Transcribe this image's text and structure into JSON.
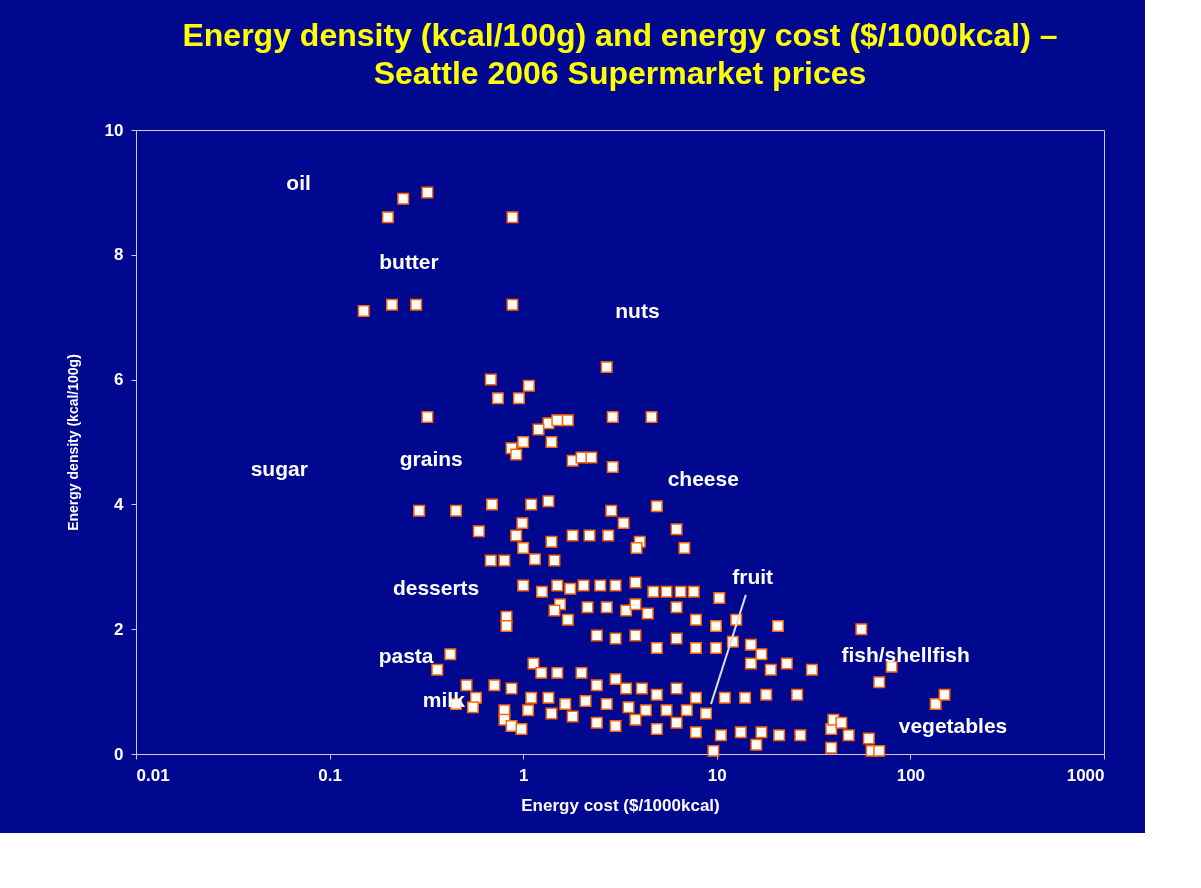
{
  "chart_data": {
    "type": "scatter",
    "title": [
      "Energy density (kcal/100g) and energy cost ($/1000kcal) –",
      "Seattle 2006 Supermarket prices"
    ],
    "xlabel": "Energy cost ($/1000kcal)",
    "ylabel": "Energy density (kcal/100g)",
    "log": "x",
    "marker": "square",
    "grid": false,
    "xlim": [
      0.01,
      1000
    ],
    "xticks": [
      0.01,
      0.1,
      1,
      10,
      100,
      1000
    ],
    "ylim": [
      0,
      10
    ],
    "yticks": [
      0,
      2,
      4,
      6,
      8,
      10
    ],
    "series": [
      {
        "color": "#ff6600",
        "x": [
          0.2,
          0.24,
          0.32,
          0.88,
          0.15,
          0.21,
          0.28,
          0.88,
          2.7,
          0.32,
          0.68,
          0.74,
          1.07,
          0.95,
          2.9,
          4.6,
          1.35,
          1.5,
          1.7,
          1.2,
          1.0,
          0.87,
          0.92,
          1.4,
          2.9,
          1.8,
          2.0,
          2.25,
          0.29,
          0.45,
          0.69,
          1.1,
          1.35,
          4.9,
          0.59,
          0.68,
          0.8,
          1.15,
          1.45,
          1.0,
          0.92,
          0.99,
          1.4,
          1.8,
          2.2,
          2.75,
          3.3,
          2.85,
          4.0,
          3.85,
          6.2,
          6.8,
          1.0,
          1.25,
          1.5,
          1.75,
          2.05,
          2.5,
          3.0,
          3.8,
          4.7,
          5.5,
          6.5,
          7.6,
          10.3,
          0.82,
          0.82,
          1.55,
          1.7,
          1.45,
          2.15,
          2.7,
          3.4,
          3.8,
          4.4,
          6.2,
          7.8,
          9.9,
          12.6,
          20.7,
          55.8,
          2.4,
          3.0,
          3.8,
          4.9,
          6.2,
          7.8,
          9.9,
          12.1,
          15,
          17,
          15,
          19,
          23,
          31,
          80,
          69,
          0.42,
          0.36,
          0.51,
          0.71,
          1.13,
          1.24,
          1.5,
          2.0,
          2.4,
          3.0,
          3.4,
          4.1,
          4.9,
          6.2,
          7.8,
          11,
          14,
          18,
          26,
          0.57,
          0.87,
          1.1,
          1.35,
          1.65,
          2.1,
          2.7,
          3.5,
          4.3,
          5.5,
          7.0,
          8.8,
          0.8,
          1.06,
          1.4,
          1.8,
          0.8,
          0.87,
          0.98,
          2.4,
          3.0,
          3.8,
          4.9,
          6.2,
          7.8,
          10.5,
          13.3,
          17,
          21,
          27,
          16,
          9.6,
          39,
          40,
          44,
          39,
          48,
          61,
          63,
          69,
          135,
          150,
          0.45,
          0.55
        ],
        "values": [
          8.6,
          8.9,
          9.0,
          8.6,
          7.1,
          7.2,
          7.2,
          7.2,
          6.2,
          5.4,
          6.0,
          5.7,
          5.9,
          5.7,
          5.4,
          5.4,
          5.3,
          5.35,
          5.35,
          5.2,
          5.0,
          4.9,
          4.8,
          5.0,
          4.6,
          4.7,
          4.75,
          4.75,
          3.9,
          3.9,
          4.0,
          4.0,
          4.05,
          3.97,
          3.57,
          3.1,
          3.1,
          3.12,
          3.1,
          3.3,
          3.5,
          3.7,
          3.4,
          3.5,
          3.5,
          3.5,
          3.7,
          3.9,
          3.4,
          3.3,
          3.6,
          3.3,
          2.7,
          2.6,
          2.7,
          2.65,
          2.7,
          2.7,
          2.7,
          2.75,
          2.6,
          2.6,
          2.6,
          2.6,
          2.5,
          2.2,
          2.05,
          2.4,
          2.15,
          2.3,
          2.35,
          2.35,
          2.3,
          2.4,
          2.25,
          2.35,
          2.15,
          2.05,
          2.15,
          2.05,
          2.0,
          1.9,
          1.85,
          1.9,
          1.7,
          1.85,
          1.7,
          1.7,
          1.8,
          1.75,
          1.6,
          1.45,
          1.35,
          1.45,
          1.35,
          1.4,
          1.15,
          1.6,
          1.35,
          1.1,
          1.1,
          1.45,
          1.3,
          1.3,
          1.3,
          1.1,
          1.2,
          1.05,
          1.05,
          0.95,
          1.05,
          0.9,
          0.9,
          0.9,
          0.95,
          0.95,
          0.9,
          1.05,
          0.9,
          0.9,
          0.8,
          0.85,
          0.8,
          0.75,
          0.7,
          0.7,
          0.7,
          0.65,
          0.7,
          0.7,
          0.65,
          0.6,
          0.55,
          0.45,
          0.4,
          0.5,
          0.45,
          0.55,
          0.4,
          0.5,
          0.35,
          0.3,
          0.35,
          0.35,
          0.3,
          0.3,
          0.15,
          0.05,
          0.4,
          0.55,
          0.5,
          0.1,
          0.3,
          0.25,
          0.05,
          0.05,
          0.8,
          0.95,
          0.8,
          0.75
        ]
      }
    ],
    "annotations": [
      "oil",
      "butter",
      "nuts",
      "sugar",
      "grains",
      "cheese",
      "desserts",
      "fruit",
      "pasta",
      "fish/shellfish",
      "milk",
      "vegetables"
    ]
  }
}
